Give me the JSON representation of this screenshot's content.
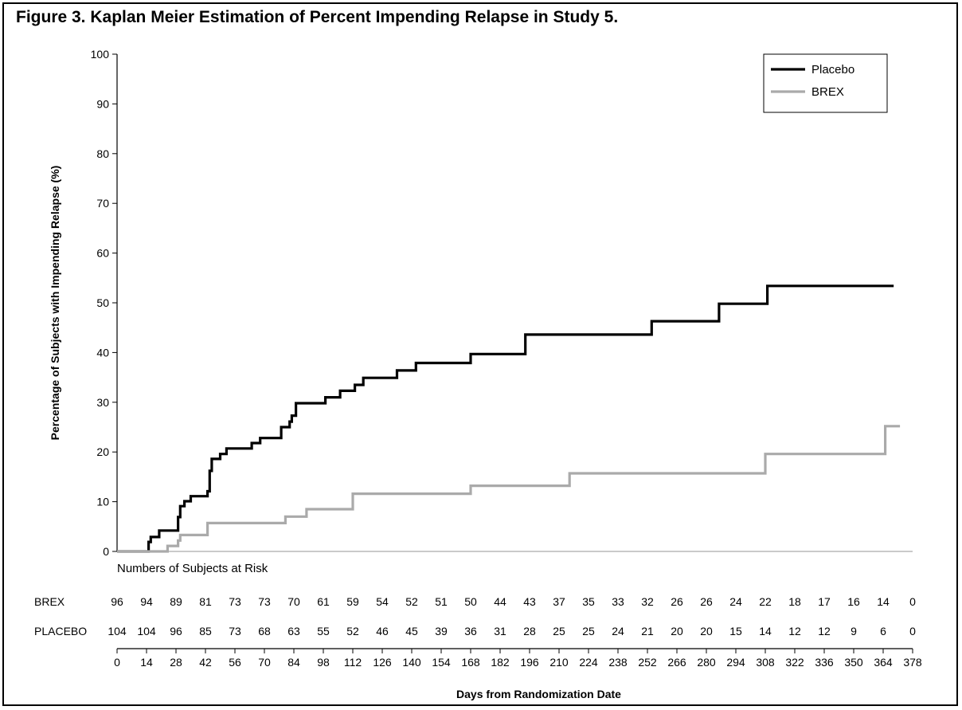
{
  "title": "Figure 3. Kaplan Meier Estimation of Percent Impending Relapse in Study 5.",
  "chart_data": {
    "type": "line",
    "step": true,
    "title": "Figure 3. Kaplan Meier Estimation of Percent Impending Relapse in Study 5.",
    "xlabel": "Days from Randomization Date",
    "ylabel": "Percentage of Subjects with Impending Relapse (%)",
    "xlim": [
      0,
      378
    ],
    "ylim": [
      0,
      100
    ],
    "xticks": [
      0,
      14,
      28,
      42,
      56,
      70,
      84,
      98,
      112,
      126,
      140,
      154,
      168,
      182,
      196,
      210,
      224,
      238,
      252,
      266,
      280,
      294,
      308,
      322,
      336,
      350,
      364,
      378
    ],
    "yticks": [
      0,
      10,
      20,
      30,
      40,
      50,
      60,
      70,
      80,
      90,
      100
    ],
    "legend_position": "top-right",
    "series": [
      {
        "name": "Placebo",
        "color": "#000000",
        "points": [
          [
            0,
            0
          ],
          [
            15,
            0
          ],
          [
            15,
            1.9
          ],
          [
            16,
            1.9
          ],
          [
            16,
            2.9
          ],
          [
            20,
            2.9
          ],
          [
            20,
            4.2
          ],
          [
            29,
            4.2
          ],
          [
            29,
            6.9
          ],
          [
            30,
            6.9
          ],
          [
            30,
            9.1
          ],
          [
            32,
            9.1
          ],
          [
            32,
            10.1
          ],
          [
            35,
            10.1
          ],
          [
            35,
            11.1
          ],
          [
            43,
            11.1
          ],
          [
            43,
            12.1
          ],
          [
            44,
            12.1
          ],
          [
            44,
            16.2
          ],
          [
            45,
            16.2
          ],
          [
            45,
            18.6
          ],
          [
            49,
            18.6
          ],
          [
            49,
            19.6
          ],
          [
            52,
            19.6
          ],
          [
            52,
            20.7
          ],
          [
            64,
            20.7
          ],
          [
            64,
            21.8
          ],
          [
            68,
            21.8
          ],
          [
            68,
            22.8
          ],
          [
            78,
            22.8
          ],
          [
            78,
            25.0
          ],
          [
            82,
            25.0
          ],
          [
            82,
            26.1
          ],
          [
            83,
            26.1
          ],
          [
            83,
            27.3
          ],
          [
            85,
            27.3
          ],
          [
            85,
            29.8
          ],
          [
            99,
            29.8
          ],
          [
            99,
            31.0
          ],
          [
            106,
            31.0
          ],
          [
            106,
            32.3
          ],
          [
            113,
            32.3
          ],
          [
            113,
            33.5
          ],
          [
            117,
            33.5
          ],
          [
            117,
            34.9
          ],
          [
            133,
            34.9
          ],
          [
            133,
            36.4
          ],
          [
            142,
            36.4
          ],
          [
            142,
            37.9
          ],
          [
            168,
            37.9
          ],
          [
            168,
            39.7
          ],
          [
            194,
            39.7
          ],
          [
            194,
            43.6
          ],
          [
            254,
            43.6
          ],
          [
            254,
            46.3
          ],
          [
            286,
            46.3
          ],
          [
            286,
            49.8
          ],
          [
            309,
            49.8
          ],
          [
            309,
            53.4
          ],
          [
            369,
            53.4
          ]
        ]
      },
      {
        "name": "BREX",
        "color": "#aaaaaa",
        "points": [
          [
            0,
            0
          ],
          [
            24,
            0
          ],
          [
            24,
            1.1
          ],
          [
            29,
            1.1
          ],
          [
            29,
            2.2
          ],
          [
            30,
            2.2
          ],
          [
            30,
            3.3
          ],
          [
            43,
            3.3
          ],
          [
            43,
            5.7
          ],
          [
            80,
            5.7
          ],
          [
            80,
            7.0
          ],
          [
            90,
            7.0
          ],
          [
            90,
            8.5
          ],
          [
            112,
            8.5
          ],
          [
            112,
            11.6
          ],
          [
            168,
            11.6
          ],
          [
            168,
            13.2
          ],
          [
            215,
            13.2
          ],
          [
            215,
            15.7
          ],
          [
            308,
            15.7
          ],
          [
            308,
            19.6
          ],
          [
            365,
            19.6
          ],
          [
            365,
            25.2
          ],
          [
            372,
            25.2
          ]
        ]
      }
    ],
    "risk_table": {
      "heading": "Numbers of Subjects at Risk",
      "rows": [
        {
          "label": "BREX",
          "values": [
            "96",
            "94",
            "89",
            "81",
            "73",
            "73",
            "70",
            "61",
            "59",
            "54",
            "52",
            "51",
            "50",
            "44",
            "43",
            "37",
            "35",
            "33",
            "32",
            "26",
            "26",
            "24",
            "22",
            "18",
            "17",
            "16",
            "14",
            "0"
          ]
        },
        {
          "label": "PLACEBO",
          "values": [
            "104",
            "104",
            "96",
            "85",
            "73",
            "68",
            "63",
            "55",
            "52",
            "46",
            "45",
            "39",
            "36",
            "31",
            "28",
            "25",
            "25",
            "24",
            "21",
            "20",
            "20",
            "15",
            "14",
            "12",
            "12",
            "9",
            "6",
            "0"
          ]
        }
      ]
    }
  }
}
